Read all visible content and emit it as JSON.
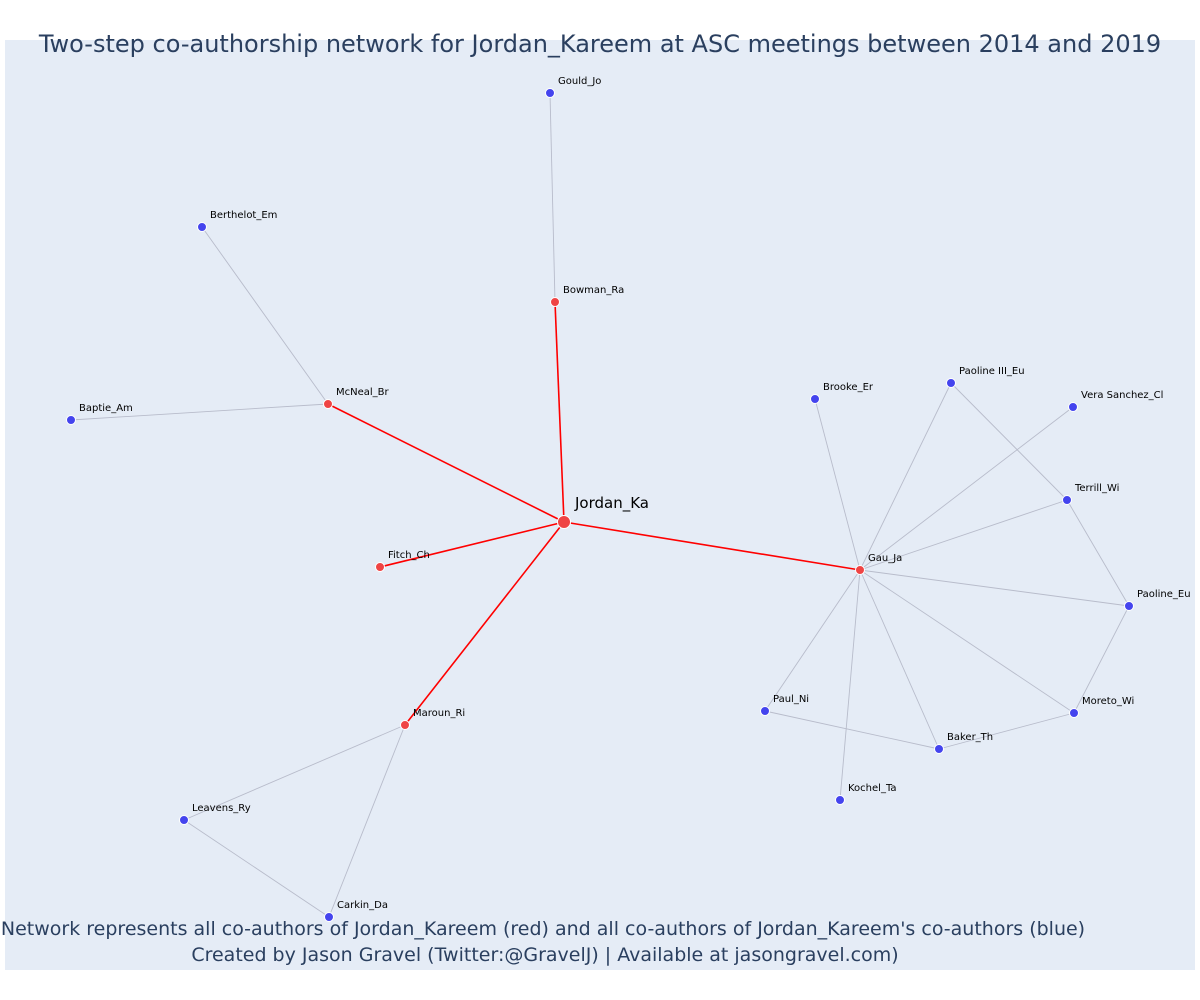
{
  "title": "Two-step co-authorship network for Jordan_Kareem at ASC meetings between 2014 and 2019",
  "caption_line1": "Network represents all co-authors of Jordan_Kareem (red) and all co-authors of Jordan_Kareem's co-authors (blue)",
  "caption_line2": "Created by Jason Gravel (Twitter:@GravelJ) | Available at jasongravel.com)",
  "colors": {
    "ego": "#ef4444",
    "first_step": "#ef4444",
    "second_step": "#4444ee",
    "ego_edge": "#ff0000",
    "other_edge": "#b8bccb",
    "background": "#e5ecf6"
  },
  "nodes": [
    {
      "id": "Jordan_Ka",
      "label": "Jordan_Ka",
      "group": "ego"
    },
    {
      "id": "Bowman_Ra",
      "label": "Bowman_Ra",
      "group": "first_step"
    },
    {
      "id": "McNeal_Br",
      "label": "McNeal_Br",
      "group": "first_step"
    },
    {
      "id": "Fitch_Ch",
      "label": "Fitch_Ch",
      "group": "first_step"
    },
    {
      "id": "Maroun_Ri",
      "label": "Maroun_Ri",
      "group": "first_step"
    },
    {
      "id": "Gau_Ja",
      "label": "Gau_Ja",
      "group": "first_step"
    },
    {
      "id": "Gould_Jo",
      "label": "Gould_Jo",
      "group": "second_step"
    },
    {
      "id": "Berthelot_Em",
      "label": "Berthelot_Em",
      "group": "second_step"
    },
    {
      "id": "Baptie_Am",
      "label": "Baptie_Am",
      "group": "second_step"
    },
    {
      "id": "Leavens_Ry",
      "label": "Leavens_Ry",
      "group": "second_step"
    },
    {
      "id": "Carkin_Da",
      "label": "Carkin_Da",
      "group": "second_step"
    },
    {
      "id": "Brooke_Er",
      "label": "Brooke_Er",
      "group": "second_step"
    },
    {
      "id": "Paoline_III_Eu",
      "label": "Paoline III_Eu",
      "group": "second_step"
    },
    {
      "id": "Vera_Sanchez_Cl",
      "label": "Vera Sanchez_Cl",
      "group": "second_step"
    },
    {
      "id": "Terrill_Wi",
      "label": "Terrill_Wi",
      "group": "second_step"
    },
    {
      "id": "Paoline_Eu",
      "label": "Paoline_Eu",
      "group": "second_step"
    },
    {
      "id": "Moreto_Wi",
      "label": "Moreto_Wi",
      "group": "second_step"
    },
    {
      "id": "Baker_Th",
      "label": "Baker_Th",
      "group": "second_step"
    },
    {
      "id": "Paul_Ni",
      "label": "Paul_Ni",
      "group": "second_step"
    },
    {
      "id": "Kochel_Ta",
      "label": "Kochel_Ta",
      "group": "second_step"
    }
  ],
  "edges": [
    {
      "source": "Jordan_Ka",
      "target": "Bowman_Ra"
    },
    {
      "source": "Jordan_Ka",
      "target": "McNeal_Br"
    },
    {
      "source": "Jordan_Ka",
      "target": "Fitch_Ch"
    },
    {
      "source": "Jordan_Ka",
      "target": "Maroun_Ri"
    },
    {
      "source": "Jordan_Ka",
      "target": "Gau_Ja"
    },
    {
      "source": "Bowman_Ra",
      "target": "Gould_Jo"
    },
    {
      "source": "McNeal_Br",
      "target": "Berthelot_Em"
    },
    {
      "source": "McNeal_Br",
      "target": "Baptie_Am"
    },
    {
      "source": "Maroun_Ri",
      "target": "Leavens_Ry"
    },
    {
      "source": "Maroun_Ri",
      "target": "Carkin_Da"
    },
    {
      "source": "Leavens_Ry",
      "target": "Carkin_Da"
    },
    {
      "source": "Gau_Ja",
      "target": "Brooke_Er"
    },
    {
      "source": "Gau_Ja",
      "target": "Paoline_III_Eu"
    },
    {
      "source": "Gau_Ja",
      "target": "Vera_Sanchez_Cl"
    },
    {
      "source": "Gau_Ja",
      "target": "Terrill_Wi"
    },
    {
      "source": "Gau_Ja",
      "target": "Paoline_Eu"
    },
    {
      "source": "Gau_Ja",
      "target": "Moreto_Wi"
    },
    {
      "source": "Gau_Ja",
      "target": "Baker_Th"
    },
    {
      "source": "Gau_Ja",
      "target": "Paul_Ni"
    },
    {
      "source": "Gau_Ja",
      "target": "Kochel_Ta"
    },
    {
      "source": "Paoline_III_Eu",
      "target": "Terrill_Wi"
    },
    {
      "source": "Terrill_Wi",
      "target": "Paoline_Eu"
    },
    {
      "source": "Paoline_Eu",
      "target": "Moreto_Wi"
    },
    {
      "source": "Moreto_Wi",
      "target": "Baker_Th"
    },
    {
      "source": "Baker_Th",
      "target": "Paul_Ni"
    }
  ]
}
